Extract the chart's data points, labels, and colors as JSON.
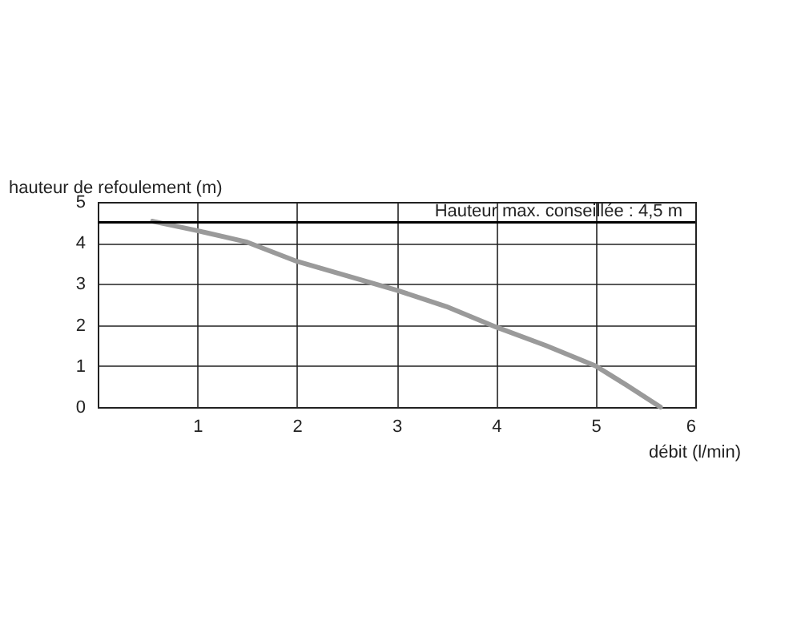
{
  "chart_data": {
    "type": "line",
    "xlabel": "débit (l/min)",
    "ylabel": "hauteur de refoulement (m)",
    "x": [
      0.55,
      1,
      1.5,
      2,
      2.5,
      3,
      3.5,
      4,
      4.5,
      5,
      5.3,
      5.65
    ],
    "series": [
      {
        "color": "#9a9a9a",
        "values": [
          4.53,
          4.3,
          4.02,
          3.55,
          3.2,
          2.85,
          2.45,
          1.95,
          1.5,
          1.0,
          0.55,
          0
        ]
      }
    ],
    "xlim": [
      0,
      6
    ],
    "xticks": [
      1,
      2,
      3,
      4,
      5,
      6
    ],
    "ylim": [
      0,
      5
    ],
    "yticks": [
      0,
      1,
      2,
      3,
      4,
      5
    ],
    "grid": true,
    "marker": "none",
    "line_style": "solid",
    "ref_lines": [
      {
        "axis": "y",
        "value": 4.5,
        "label": "Hauteur max. conseillée : 4,5 m",
        "color": "#000000"
      }
    ]
  }
}
